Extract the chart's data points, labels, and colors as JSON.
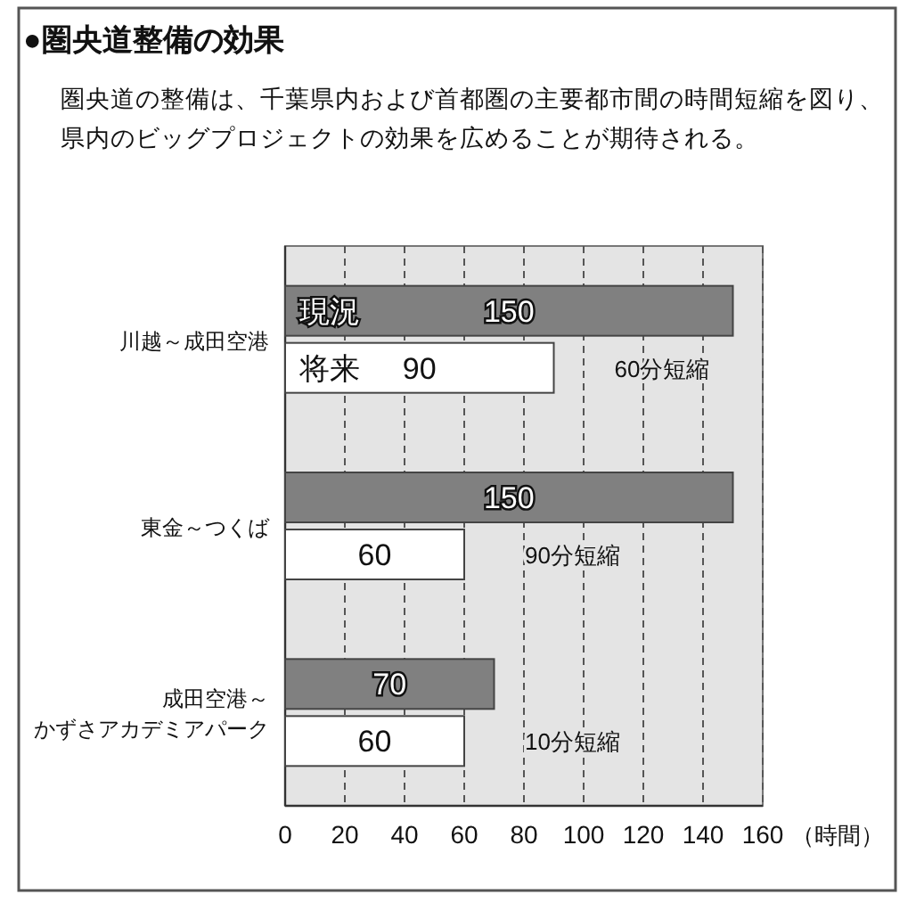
{
  "chart_data": {
    "type": "bar",
    "orientation": "horizontal",
    "title": "●圏央道整備の効果",
    "subtitle": "圏央道の整備は、千葉県内および首都圏の主要都市間の時間短縮を図り、県内のビッグプロジェクトの効果を広めることが期待される。",
    "categories": [
      "川越～成田空港",
      "東金～つくば",
      "成田空港～かずさアカデミアパーク"
    ],
    "series": [
      {
        "name": "現況",
        "color": "#808080",
        "values": [
          150,
          150,
          70
        ]
      },
      {
        "name": "将来",
        "color": "#ffffff",
        "values": [
          90,
          60,
          60
        ]
      }
    ],
    "xlabel": "（時間）",
    "xlim": [
      0,
      160
    ],
    "xticks": [
      0,
      20,
      40,
      60,
      80,
      100,
      120,
      140,
      160
    ],
    "grid": "x",
    "data_labels": true,
    "legend": false,
    "annotations": [
      "60分短縮",
      "90分短縮",
      "10分短縮"
    ]
  }
}
